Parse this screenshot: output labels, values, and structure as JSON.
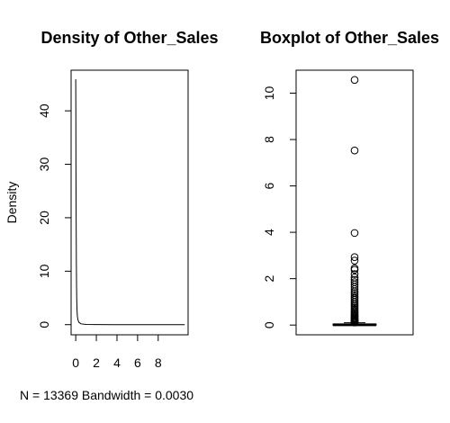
{
  "chart_data": [
    {
      "type": "line",
      "title": "Density of Other_Sales",
      "ylabel": "Density",
      "xlabel": "N = 13369   Bandwidth = 0.0030",
      "xlim": [
        -0.45,
        10.9
      ],
      "ylim": [
        -1.9,
        47.6
      ],
      "x_ticks": [
        0,
        2,
        4,
        6,
        8
      ],
      "y_ticks": [
        0,
        10,
        20,
        30,
        40
      ],
      "series": [
        {
          "x": [
            0.0,
            0.01,
            0.02,
            0.04,
            0.06,
            0.08,
            0.1,
            0.12,
            0.15,
            0.2,
            0.3,
            0.5,
            1.0,
            2.0,
            4.0,
            6.0,
            8.0,
            10.57
          ],
          "y": [
            45.9,
            40.0,
            30.0,
            20.0,
            12.0,
            7.0,
            4.5,
            3.0,
            1.8,
            1.0,
            0.45,
            0.15,
            0.04,
            0.01,
            0.0,
            0.0,
            0.0,
            0.0
          ]
        }
      ]
    },
    {
      "type": "boxplot",
      "title": "Boxplot of Other_Sales",
      "ylim": [
        -0.42,
        10.99
      ],
      "y_ticks": [
        0,
        2,
        4,
        6,
        8,
        10
      ],
      "box": {
        "min": 0.0,
        "q1": 0.0,
        "median": 0.01,
        "q3": 0.04,
        "max": 0.1
      },
      "outliers": [
        10.57,
        7.53,
        3.97,
        2.93,
        2.78,
        2.45,
        2.38,
        2.2,
        2.05,
        1.95,
        1.85,
        1.75,
        1.65,
        1.55,
        1.45,
        1.38,
        1.3,
        1.22,
        1.15,
        1.08,
        1.0,
        0.93,
        0.86,
        0.8,
        0.74,
        0.68,
        0.62,
        0.57,
        0.52,
        0.47,
        0.42,
        0.38,
        0.34,
        0.3,
        0.27,
        0.24,
        0.21,
        0.18,
        0.16,
        0.14,
        0.12,
        0.11
      ]
    }
  ]
}
